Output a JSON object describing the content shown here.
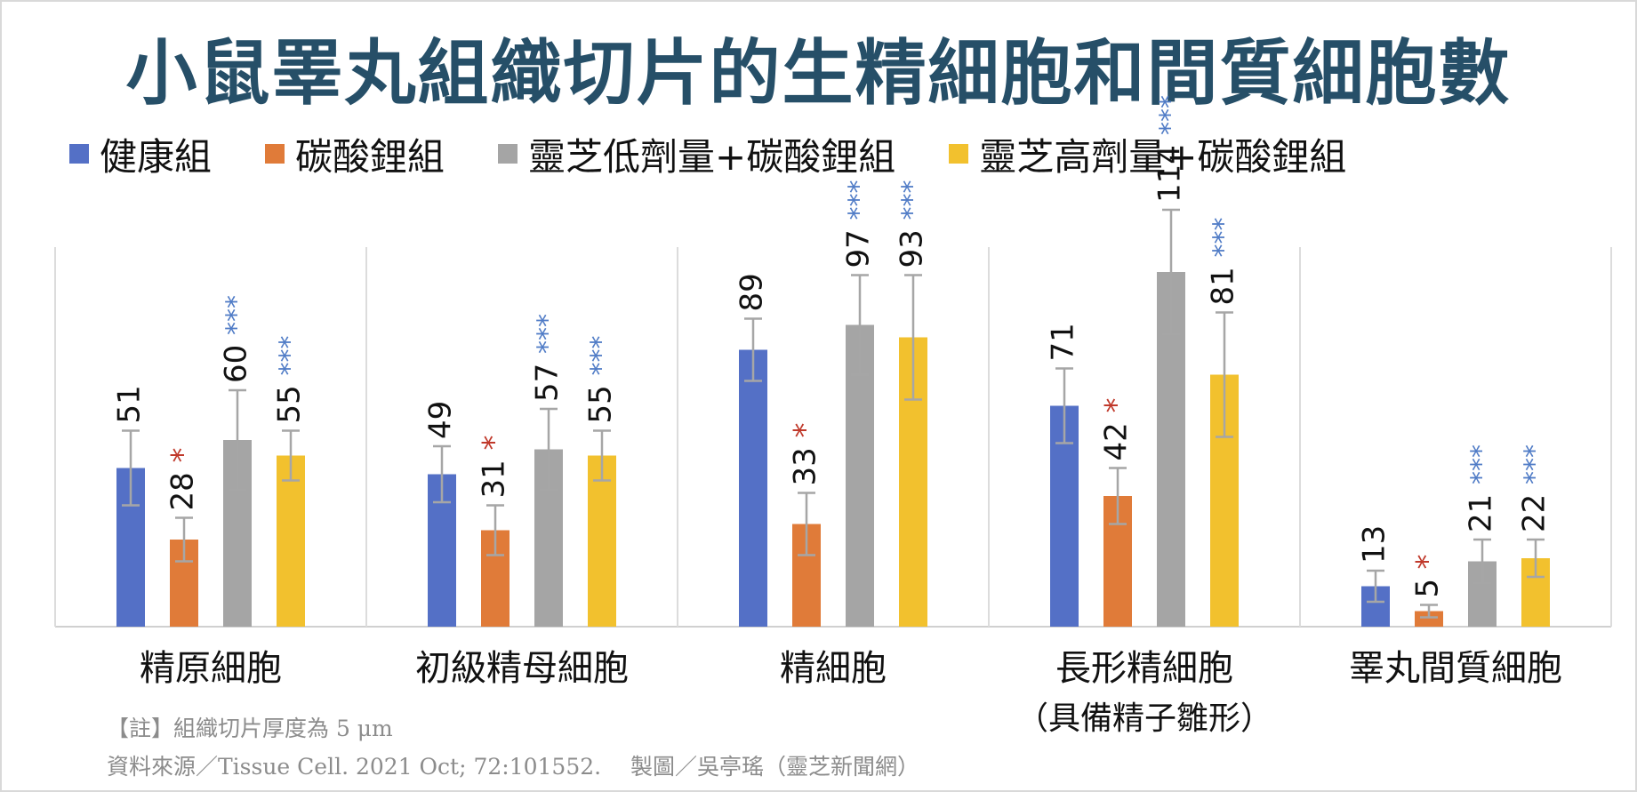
{
  "colors": {
    "title": "#264f68",
    "series": [
      "#5470c6",
      "#e07b39",
      "#a5a5a5",
      "#f2c12e"
    ],
    "star_red": "#c0392b",
    "star_blue": "#4f7bc6",
    "error_bar": "#a6a6a6",
    "axis": "#d0d0d0"
  },
  "footer": {
    "note": "【註】組織切片厚度為 5 μm",
    "source": "資料來源／Tissue Cell. 2021 Oct; 72:101552.　 製圖／吳亭瑤（靈芝新聞網）"
  },
  "chart_data": {
    "type": "bar",
    "title": "小鼠睪丸組織切片的生精細胞和間質細胞數",
    "categories": [
      "精原細胞",
      "初級精母細胞",
      "精細胞",
      "長形精細胞",
      "睪丸間質細胞"
    ],
    "category_sublabels": [
      "",
      "",
      "",
      "（具備精子雛形）",
      ""
    ],
    "legend_position": "top",
    "ylim": [
      0,
      145
    ],
    "grid": false,
    "series": [
      {
        "name": "健康組",
        "values": [
          51,
          49,
          89,
          71,
          13
        ],
        "errors": [
          12,
          9,
          10,
          12,
          5
        ],
        "significance": [
          "",
          "",
          "",
          "",
          ""
        ]
      },
      {
        "name": "碳酸鋰組",
        "values": [
          28,
          31,
          33,
          42,
          5
        ],
        "errors": [
          7,
          8,
          10,
          9,
          2
        ],
        "significance": [
          "*",
          "*",
          "*",
          "*",
          "*"
        ]
      },
      {
        "name": "靈芝低劑量+碳酸鋰組",
        "values": [
          60,
          57,
          97,
          114,
          21
        ],
        "errors": [
          16,
          13,
          16,
          20,
          7
        ],
        "significance": [
          "***",
          "***",
          "***",
          "***",
          "***"
        ]
      },
      {
        "name": "靈芝高劑量+碳酸鋰組",
        "values": [
          55,
          55,
          93,
          81,
          22
        ],
        "errors": [
          8,
          8,
          20,
          20,
          6
        ],
        "significance": [
          "***",
          "***",
          "***",
          "***",
          "***"
        ]
      }
    ]
  }
}
